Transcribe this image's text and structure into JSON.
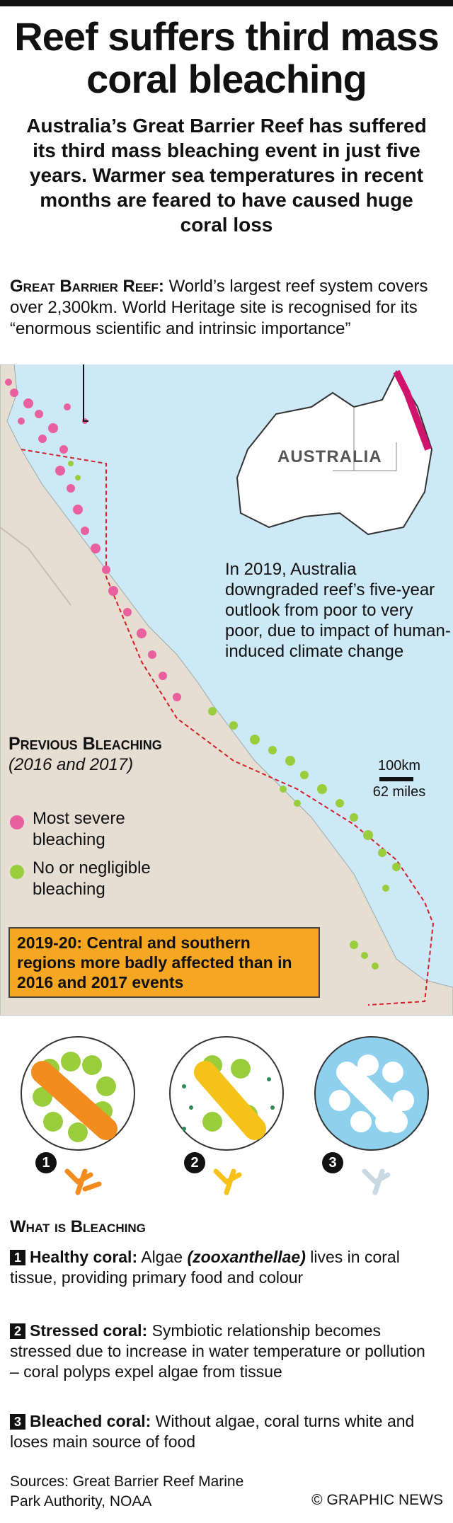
{
  "title": "Reef suffers third mass coral bleaching",
  "intro": "Australia’s Great Barrier Reef has suffered its third mass bleaching event in just five years. Warmer sea temperatures in recent months are feared to have caused huge coral loss",
  "gbr": {
    "heading": "Great Barrier Reef:",
    "text": " World’s largest reef system covers over 2,300km. World Heritage site is recognised for its “enormous scientific and intrinsic importance”"
  },
  "map": {
    "inset_label": "AUSTRALIA",
    "outlook": "In 2019, Australia downgraded reef’s five-year outlook from poor to very poor, due to impact of human-induced climate change",
    "scale_km": "100km",
    "scale_miles": "62 miles",
    "colors": {
      "sea": "#cde9f6",
      "land": "#e6ded2",
      "severe": "#e8609e",
      "negligible": "#9acd3c",
      "callout": "#f5a623",
      "boundary": "#d0202a"
    }
  },
  "legend": {
    "title": "Previous Bleaching",
    "subtitle": "(2016 and 2017)",
    "items": [
      {
        "label": "Most severe bleaching",
        "color": "#e8609e"
      },
      {
        "label": "No or negligible bleaching",
        "color": "#9acd3c"
      }
    ]
  },
  "callout": "2019-20: Central and southern regions more badly affected than in 2016 and 2017 events",
  "bleaching": {
    "heading": "What is Bleaching",
    "markers": [
      "1",
      "2",
      "3"
    ],
    "steps": [
      {
        "num": "1",
        "title": "Healthy coral:",
        "text_a": " Algae ",
        "italic": "(zooxanthellae)",
        "text_b": " lives in coral tissue, providing primary food and colour"
      },
      {
        "num": "2",
        "title": "Stressed coral:",
        "text_a": " Symbiotic relationship becomes stressed due to increase in water temperature or pollution – coral polyps expel algae from tissue"
      },
      {
        "num": "3",
        "title": "Bleached coral:",
        "text_a": " Without algae, coral turns white and loses main source of food"
      }
    ]
  },
  "sources": "Sources: Great Barrier Reef Marine Park Authority, NOAA",
  "credit": "© GRAPHIC NEWS"
}
